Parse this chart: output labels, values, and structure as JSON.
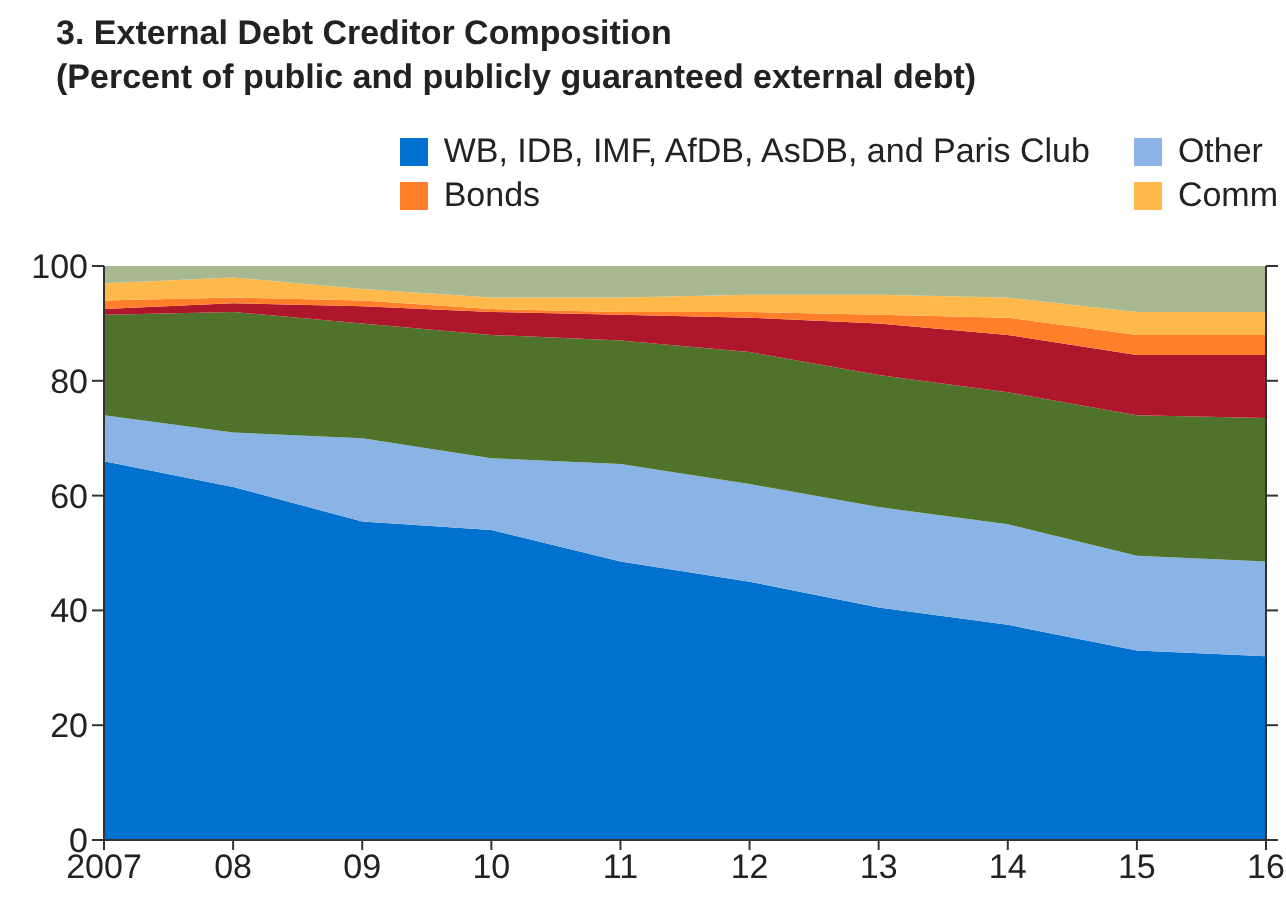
{
  "chart_data": {
    "type": "area",
    "title": "3. External Debt Creditor Composition",
    "subtitle": "(Percent of public and publicly guaranteed external debt)",
    "stacked": true,
    "categories": [
      "2007",
      "08",
      "09",
      "10",
      "11",
      "12",
      "13",
      "14",
      "15",
      "16"
    ],
    "series": [
      {
        "name": "WB, IDB, IMF, AfDB, AsDB, and Paris Club",
        "color": "#0071ce",
        "values": [
          66,
          61.5,
          55.5,
          54,
          48.5,
          45,
          40.5,
          37.5,
          33,
          32
        ]
      },
      {
        "name": "Other",
        "color": "#8ab4e6",
        "values": [
          8,
          9.5,
          14.5,
          12.5,
          17,
          17,
          17.5,
          17.5,
          16.5,
          16.5
        ]
      },
      {
        "color": "#50732b",
        "values": [
          17.5,
          21,
          20,
          21.5,
          21.5,
          23,
          23,
          23,
          24.5,
          25
        ]
      },
      {
        "color": "#ad162b",
        "values": [
          1,
          1.5,
          3,
          4,
          4.5,
          6,
          9,
          10,
          10.5,
          11
        ]
      },
      {
        "name": "Bonds",
        "color": "#ff7f2a",
        "values": [
          1.5,
          1,
          1,
          0.5,
          0.5,
          1,
          1.5,
          3,
          3.5,
          3.5
        ]
      },
      {
        "name": "Comm",
        "color": "#ffb94a",
        "values": [
          3,
          3.5,
          2,
          2,
          2.5,
          3,
          3.5,
          3.5,
          4,
          4
        ]
      },
      {
        "color": "#a8b891",
        "values": [
          3,
          2,
          4,
          5.5,
          5.5,
          5,
          5,
          5.5,
          8,
          8
        ]
      }
    ],
    "ylim": [
      0,
      100
    ],
    "yticks": [
      0,
      20,
      40,
      60,
      80,
      100
    ],
    "legend": "top right"
  }
}
